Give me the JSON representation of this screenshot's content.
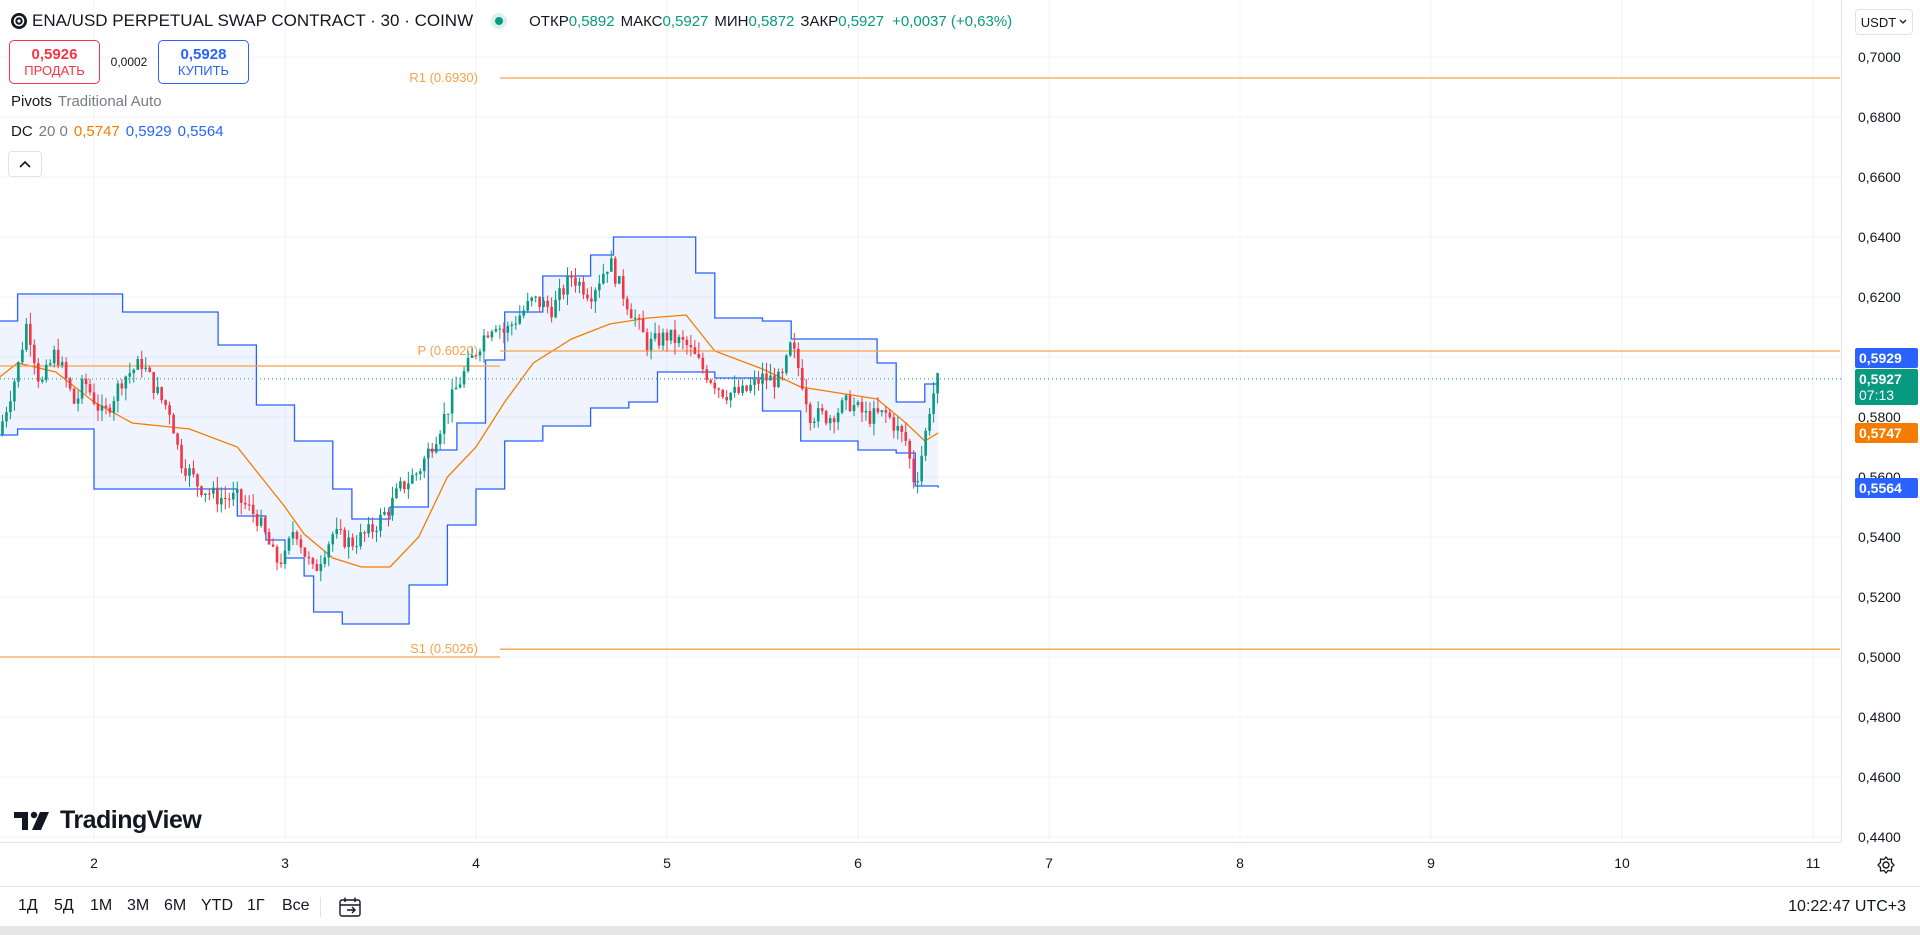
{
  "header": {
    "title": "ENA/USD PERPETUAL SWAP CONTRACT · 30 · COINW",
    "ohlc": [
      {
        "key": "ОТКР",
        "value": "0,5892"
      },
      {
        "key": "МАКС",
        "value": "0,5927"
      },
      {
        "key": "МИН",
        "value": "0,5872"
      },
      {
        "key": "ЗАКР",
        "value": "0,5927"
      }
    ],
    "change": "+0,0037 (+0,63%)"
  },
  "trade": {
    "sell_price": "0,5926",
    "sell_label": "ПРОДАТЬ",
    "spread": "0,0002",
    "buy_price": "0,5928",
    "buy_label": "КУПИТЬ"
  },
  "indicators": {
    "pivots": {
      "name": "Pivots",
      "params": "Traditional Auto"
    },
    "dc": {
      "name": "DC",
      "params": "20 0",
      "upper": "0,5929",
      "mid": "0,5747",
      "lower": "0,5564"
    }
  },
  "currency": "USDT",
  "price_scale": {
    "ticks": [
      "0,7000",
      "0,6800",
      "0,6600",
      "0,6400",
      "0,6200",
      "0,5800",
      "0,5600",
      "0,5400",
      "0,5200",
      "0,5000",
      "0,4800",
      "0,4600",
      "0,4400"
    ],
    "labels": {
      "dc_upper": "0,5929",
      "last": "0,5927",
      "countdown": "07:13",
      "dc_mid": "0,5747",
      "dc_lower": "0,5564"
    }
  },
  "time_scale": {
    "ticks": [
      "2",
      "3",
      "4",
      "5",
      "6",
      "7",
      "8",
      "9",
      "10",
      "11"
    ]
  },
  "bottom_bar": {
    "ranges": [
      "1Д",
      "5Д",
      "1М",
      "3М",
      "6М",
      "YTD",
      "1Г",
      "Все"
    ],
    "clock": "10:22:47 UTC+3"
  },
  "logo_text": "TradingView",
  "colors": {
    "up": "#089981",
    "down": "#f23645",
    "dc_band": "#2962ff",
    "dc_mid": "#f57c00",
    "pivot": "#f7a14a"
  },
  "chart_data": {
    "type": "candlestick",
    "y_range": [
      0.436,
      0.7049
    ],
    "x_range": [
      1.5,
      11.1
    ],
    "pivots": [
      {
        "label": "R1 (0.6930)",
        "value": 0.693
      },
      {
        "label": "P (0.6020)",
        "value": 0.602
      },
      {
        "label": "S1 (0.5026)",
        "value": 0.5026
      }
    ],
    "dc_upper": [
      [
        1.5,
        0.612
      ],
      [
        1.6,
        0.621
      ],
      [
        1.62,
        0.621
      ],
      [
        1.62,
        0.621
      ],
      [
        2.0,
        0.621
      ],
      [
        2.15,
        0.615
      ],
      [
        2.65,
        0.604
      ],
      [
        2.85,
        0.584
      ],
      [
        3.05,
        0.572
      ],
      [
        3.25,
        0.556
      ],
      [
        3.35,
        0.546
      ],
      [
        3.55,
        0.55
      ],
      [
        3.75,
        0.569
      ],
      [
        3.9,
        0.578
      ],
      [
        4.05,
        0.599
      ],
      [
        4.15,
        0.615
      ],
      [
        4.35,
        0.627
      ],
      [
        4.6,
        0.634
      ],
      [
        4.72,
        0.64
      ],
      [
        5.1,
        0.64
      ],
      [
        5.15,
        0.628
      ],
      [
        5.25,
        0.624
      ],
      [
        5.25,
        0.613
      ],
      [
        5.5,
        0.612
      ],
      [
        5.65,
        0.606
      ],
      [
        5.65,
        0.606
      ],
      [
        5.9,
        0.606
      ],
      [
        6.1,
        0.598
      ],
      [
        6.2,
        0.585
      ],
      [
        6.35,
        0.591
      ],
      [
        6.42,
        0.5929
      ]
    ],
    "dc_lower": [
      [
        1.5,
        0.574
      ],
      [
        1.6,
        0.576
      ],
      [
        1.95,
        0.576
      ],
      [
        2.0,
        0.556
      ],
      [
        2.5,
        0.556
      ],
      [
        2.75,
        0.547
      ],
      [
        2.9,
        0.539
      ],
      [
        3.0,
        0.533
      ],
      [
        3.1,
        0.527
      ],
      [
        3.15,
        0.515
      ],
      [
        3.3,
        0.511
      ],
      [
        3.55,
        0.511
      ],
      [
        3.65,
        0.524
      ],
      [
        3.85,
        0.544
      ],
      [
        4.0,
        0.556
      ],
      [
        4.15,
        0.572
      ],
      [
        4.35,
        0.577
      ],
      [
        4.6,
        0.583
      ],
      [
        4.8,
        0.585
      ],
      [
        4.95,
        0.595
      ],
      [
        5.25,
        0.593
      ],
      [
        5.5,
        0.582
      ],
      [
        5.7,
        0.572
      ],
      [
        5.8,
        0.572
      ],
      [
        6.0,
        0.569
      ],
      [
        6.2,
        0.568
      ],
      [
        6.3,
        0.557
      ],
      [
        6.42,
        0.5564
      ]
    ],
    "dc_mid": [
      [
        1.5,
        0.593
      ],
      [
        1.6,
        0.598
      ],
      [
        1.8,
        0.595
      ],
      [
        2.0,
        0.585
      ],
      [
        2.2,
        0.578
      ],
      [
        2.5,
        0.576
      ],
      [
        2.75,
        0.57
      ],
      [
        2.9,
        0.558
      ],
      [
        3.0,
        0.55
      ],
      [
        3.1,
        0.541
      ],
      [
        3.25,
        0.533
      ],
      [
        3.4,
        0.53
      ],
      [
        3.55,
        0.53
      ],
      [
        3.7,
        0.54
      ],
      [
        3.85,
        0.56
      ],
      [
        4.0,
        0.57
      ],
      [
        4.15,
        0.585
      ],
      [
        4.3,
        0.598
      ],
      [
        4.5,
        0.606
      ],
      [
        4.7,
        0.611
      ],
      [
        4.9,
        0.613
      ],
      [
        5.1,
        0.614
      ],
      [
        5.25,
        0.602
      ],
      [
        5.5,
        0.596
      ],
      [
        5.7,
        0.59
      ],
      [
        5.9,
        0.588
      ],
      [
        6.1,
        0.586
      ],
      [
        6.25,
        0.578
      ],
      [
        6.35,
        0.572
      ],
      [
        6.42,
        0.5747
      ]
    ],
    "candles_close_path": [
      [
        1.5,
        0.574
      ],
      [
        1.6,
        0.596
      ],
      [
        1.65,
        0.612
      ],
      [
        1.72,
        0.59
      ],
      [
        1.8,
        0.602
      ],
      [
        1.9,
        0.584
      ],
      [
        1.95,
        0.592
      ],
      [
        2.05,
        0.58
      ],
      [
        2.15,
        0.593
      ],
      [
        2.25,
        0.598
      ],
      [
        2.35,
        0.586
      ],
      [
        2.4,
        0.582
      ],
      [
        2.45,
        0.566
      ],
      [
        2.55,
        0.557
      ],
      [
        2.65,
        0.553
      ],
      [
        2.75,
        0.553
      ],
      [
        2.85,
        0.547
      ],
      [
        2.9,
        0.54
      ],
      [
        2.95,
        0.532
      ],
      [
        3.0,
        0.533
      ],
      [
        3.05,
        0.544
      ],
      [
        3.1,
        0.535
      ],
      [
        3.15,
        0.528
      ],
      [
        3.2,
        0.535
      ],
      [
        3.25,
        0.541
      ],
      [
        3.35,
        0.538
      ],
      [
        3.45,
        0.542
      ],
      [
        3.55,
        0.55
      ],
      [
        3.6,
        0.556
      ],
      [
        3.7,
        0.562
      ],
      [
        3.8,
        0.575
      ],
      [
        3.9,
        0.59
      ],
      [
        4.0,
        0.602
      ],
      [
        4.05,
        0.608
      ],
      [
        4.1,
        0.612
      ],
      [
        4.15,
        0.608
      ],
      [
        4.2,
        0.612
      ],
      [
        4.3,
        0.619
      ],
      [
        4.4,
        0.616
      ],
      [
        4.5,
        0.627
      ],
      [
        4.6,
        0.621
      ],
      [
        4.7,
        0.632
      ],
      [
        4.75,
        0.624
      ],
      [
        4.8,
        0.617
      ],
      [
        4.9,
        0.604
      ],
      [
        5.0,
        0.607
      ],
      [
        5.1,
        0.604
      ],
      [
        5.2,
        0.595
      ],
      [
        5.3,
        0.588
      ],
      [
        5.4,
        0.588
      ],
      [
        5.5,
        0.593
      ],
      [
        5.6,
        0.592
      ],
      [
        5.65,
        0.604
      ],
      [
        5.7,
        0.594
      ],
      [
        5.75,
        0.581
      ],
      [
        5.85,
        0.58
      ],
      [
        5.95,
        0.585
      ],
      [
        6.05,
        0.58
      ],
      [
        6.15,
        0.581
      ],
      [
        6.25,
        0.572
      ],
      [
        6.3,
        0.557
      ],
      [
        6.35,
        0.573
      ],
      [
        6.38,
        0.585
      ],
      [
        6.42,
        0.5927
      ]
    ]
  }
}
